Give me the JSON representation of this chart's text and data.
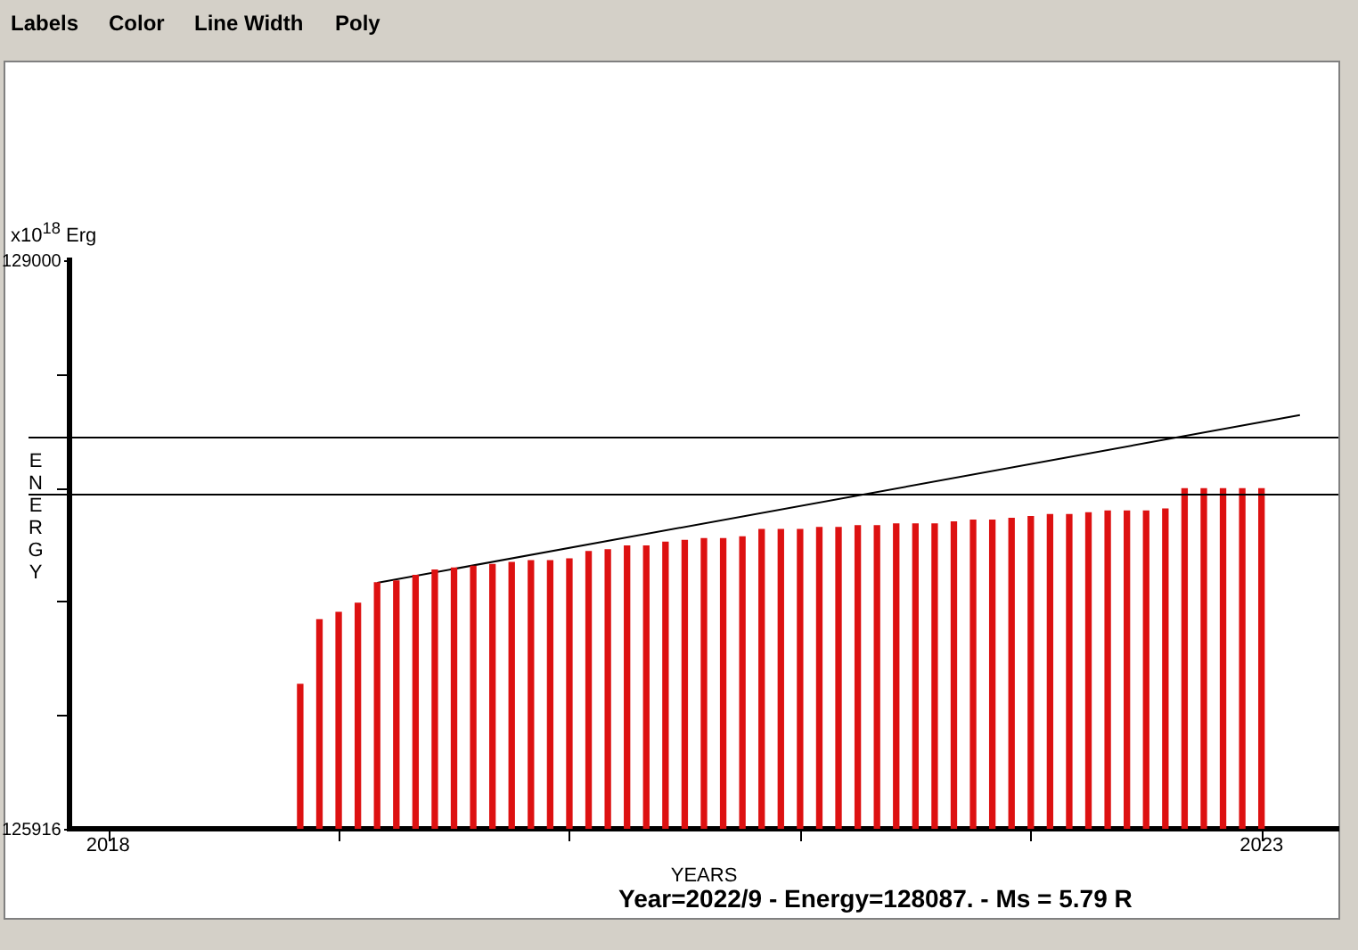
{
  "chart_data": {
    "type": "bar",
    "ylabel": "ENERGY",
    "xlabel": "YEARS",
    "annotations": [
      "Labels",
      "Color",
      "Line Width",
      "Poly",
      "x10$^{18}$ Erg",
      "Year=2022/9 - Energy=128087. - Ms = 5.79 R"
    ],
    "x": [
      "2018-11",
      "2018-12",
      "2019-01",
      "2019-02",
      "2019-03",
      "2019-04",
      "2019-05",
      "2019-06",
      "2019-07",
      "2019-08",
      "2019-09",
      "2019-10",
      "2019-11",
      "2019-12",
      "2020-01",
      "2020-02",
      "2020-03",
      "2020-04",
      "2020-05",
      "2020-06",
      "2020-07",
      "2020-08",
      "2020-09",
      "2020-10",
      "2020-11",
      "2020-12",
      "2021-01",
      "2021-02",
      "2021-03",
      "2021-04",
      "2021-05",
      "2021-06",
      "2021-07",
      "2021-08",
      "2021-09",
      "2021-10",
      "2021-11",
      "2021-12",
      "2022-01",
      "2022-02",
      "2022-03",
      "2022-04",
      "2022-05",
      "2022-06",
      "2022-07",
      "2022-08",
      "2022-09",
      "2022-10",
      "2022-11",
      "2022-12",
      "2023-01"
    ],
    "series": [
      {
        "color": "#dd1111",
        "values": [
          126700,
          127050,
          127090,
          127140,
          127250,
          127260,
          127290,
          127320,
          127330,
          127340,
          127350,
          127360,
          127370,
          127370,
          127380,
          127420,
          127430,
          127450,
          127450,
          127470,
          127480,
          127490,
          127490,
          127500,
          127540,
          127540,
          127540,
          127550,
          127550,
          127560,
          127560,
          127570,
          127570,
          127570,
          127580,
          127590,
          127590,
          127600,
          127610,
          127620,
          127620,
          127630,
          127640,
          127640,
          127640,
          127650,
          127760,
          127760,
          127760,
          127760,
          127760
        ]
      },
      {
        "type": "line",
        "color": "#000000",
        "x": [
          "2019-03",
          "2023-03"
        ],
        "values": [
          127250,
          128160
        ]
      }
    ],
    "xlim": [
      "2017-11",
      "2023-05"
    ],
    "xticks": [
      "2018",
      {
        "value": "2019",
        "label": null
      },
      {
        "value": "2020",
        "label": null
      },
      {
        "value": "2021",
        "label": null
      },
      {
        "value": "2022",
        "label": null
      },
      "2023"
    ],
    "ylim": [
      125916,
      129000
    ],
    "yticks": [
      125916,
      {
        "value": 126533,
        "label": null
      },
      {
        "value": 127149,
        "label": null
      },
      {
        "value": 127766,
        "label": null
      },
      {
        "value": 128383,
        "label": null
      },
      129000
    ],
    "ref_lines": [
      {
        "axis": "y",
        "value": 128040,
        "color": "#000000"
      },
      {
        "axis": "y",
        "value": 127730,
        "color": "#000000"
      }
    ],
    "legend": false,
    "marker": "none"
  }
}
